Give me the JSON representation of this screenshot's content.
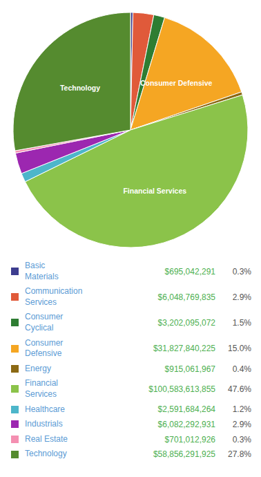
{
  "chart_data": {
    "type": "pie",
    "categories": [
      "Basic\nMaterials",
      "Communication\nServices",
      "Consumer\nCyclical",
      "Consumer\nDefensive",
      "Energy",
      "Financial\nServices",
      "Healthcare",
      "Industrials",
      "Real Estate",
      "Technology"
    ],
    "values": [
      695042291,
      6048769835,
      3202095072,
      31827840225,
      915061967,
      100583613855,
      2591684264,
      6082292931,
      701012926,
      58856291925
    ],
    "value_labels": [
      "$695,042,291",
      "$6,048,769,835",
      "$3,202,095,072",
      "$31,827,840,225",
      "$915,061,967",
      "$100,583,613,855",
      "$2,591,684,264",
      "$6,082,292,931",
      "$701,012,926",
      "$58,856,291,925"
    ],
    "percentages": [
      0.3,
      2.9,
      1.5,
      15.0,
      0.4,
      47.6,
      1.2,
      2.9,
      0.3,
      27.8
    ],
    "percentage_labels": [
      "0.3%",
      "2.9%",
      "1.5%",
      "15.0%",
      "0.4%",
      "47.6%",
      "1.2%",
      "2.9%",
      "0.3%",
      "27.8%"
    ],
    "colors": [
      "#3d3d8f",
      "#e05a3a",
      "#2e7d32",
      "#f5a623",
      "#8b6914",
      "#8bc34a",
      "#4db6ca",
      "#9c27b0",
      "#f48fb1",
      "#558b2f"
    ],
    "slice_labels": [
      null,
      null,
      null,
      "Consumer Defensive",
      null,
      "Financial Services",
      null,
      null,
      null,
      "Technology"
    ],
    "legend": "bottom"
  }
}
